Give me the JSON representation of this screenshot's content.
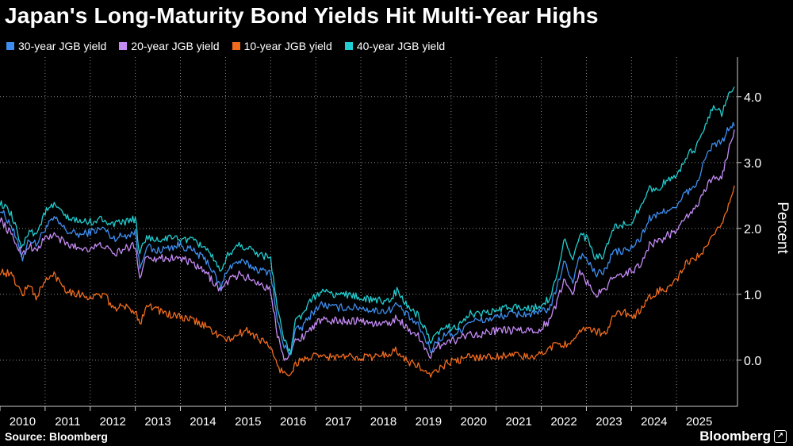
{
  "title": "Japan's Long-Maturity Bond Yields Hit Multi-Year Highs",
  "source": "Source: Bloomberg",
  "brand": "Bloomberg",
  "brand_icon": "chart-icon",
  "chart_data": {
    "type": "line",
    "title": "Japan's Long-Maturity Bond Yields Hit Multi-Year Highs",
    "xlabel": "",
    "ylabel": "Percent",
    "x_ticks": [
      "2010",
      "2011",
      "2012",
      "2013",
      "2014",
      "2015",
      "2016",
      "2017",
      "2018",
      "2019",
      "2020",
      "2021",
      "2022",
      "2023",
      "2024",
      "2025"
    ],
    "xlim": [
      2010.0,
      2026.35
    ],
    "y_ticks": [
      "4.0",
      "3.0",
      "2.0",
      "1.0",
      "0.0"
    ],
    "ylim": [
      -0.7,
      4.6
    ],
    "grid": true,
    "legend_position": "top-left",
    "series": [
      {
        "name": "30-year JGB yield",
        "color": "#3d8ef0",
        "x": [
          2010.0,
          2010.25,
          2010.5,
          2010.65,
          2010.8,
          2011.0,
          2011.2,
          2011.5,
          2011.8,
          2012.0,
          2012.3,
          2012.5,
          2012.8,
          2013.0,
          2013.1,
          2013.25,
          2013.4,
          2013.7,
          2014.0,
          2014.3,
          2014.6,
          2014.9,
          2015.05,
          2015.3,
          2015.5,
          2015.8,
          2016.0,
          2016.15,
          2016.3,
          2016.45,
          2016.55,
          2016.7,
          2016.9,
          2017.1,
          2017.4,
          2017.7,
          2018.0,
          2018.3,
          2018.6,
          2018.8,
          2019.0,
          2019.3,
          2019.55,
          2019.7,
          2019.9,
          2020.1,
          2020.2,
          2020.4,
          2020.7,
          2021.0,
          2021.3,
          2021.6,
          2021.9,
          2022.2,
          2022.35,
          2022.5,
          2022.7,
          2022.85,
          2023.0,
          2023.2,
          2023.4,
          2023.6,
          2023.8,
          2024.0,
          2024.2,
          2024.4,
          2024.6,
          2024.8,
          2025.0,
          2025.2,
          2025.4,
          2025.55,
          2025.7,
          2025.85,
          2026.0,
          2026.1,
          2026.2,
          2026.28
        ],
        "values": [
          2.3,
          2.05,
          1.55,
          1.85,
          1.75,
          2.0,
          2.15,
          1.95,
          1.9,
          1.95,
          2.0,
          1.85,
          1.9,
          1.95,
          1.4,
          1.75,
          1.65,
          1.7,
          1.75,
          1.65,
          1.5,
          1.1,
          1.4,
          1.5,
          1.45,
          1.35,
          1.35,
          0.6,
          0.2,
          0.1,
          0.45,
          0.5,
          0.7,
          0.85,
          0.8,
          0.8,
          0.8,
          0.75,
          0.75,
          0.85,
          0.7,
          0.5,
          0.15,
          0.3,
          0.4,
          0.4,
          0.45,
          0.6,
          0.6,
          0.65,
          0.7,
          0.7,
          0.7,
          0.8,
          1.1,
          1.5,
          1.2,
          1.6,
          1.55,
          1.3,
          1.35,
          1.65,
          1.65,
          1.7,
          1.85,
          2.15,
          2.2,
          2.3,
          2.3,
          2.55,
          2.6,
          2.9,
          3.15,
          3.3,
          3.3,
          3.45,
          3.55,
          3.55
        ]
      },
      {
        "name": "20-year JGB yield",
        "color": "#c48af5",
        "x": [
          2010.0,
          2010.25,
          2010.5,
          2010.65,
          2010.8,
          2011.0,
          2011.2,
          2011.5,
          2011.8,
          2012.0,
          2012.3,
          2012.5,
          2012.8,
          2013.0,
          2013.1,
          2013.25,
          2013.4,
          2013.7,
          2014.0,
          2014.3,
          2014.6,
          2014.9,
          2015.05,
          2015.3,
          2015.5,
          2015.8,
          2016.0,
          2016.15,
          2016.3,
          2016.45,
          2016.55,
          2016.7,
          2016.9,
          2017.1,
          2017.4,
          2017.7,
          2018.0,
          2018.3,
          2018.6,
          2018.8,
          2019.0,
          2019.3,
          2019.55,
          2019.7,
          2019.9,
          2020.1,
          2020.2,
          2020.4,
          2020.7,
          2021.0,
          2021.3,
          2021.6,
          2021.9,
          2022.2,
          2022.35,
          2022.5,
          2022.7,
          2022.85,
          2023.0,
          2023.2,
          2023.4,
          2023.6,
          2023.8,
          2024.0,
          2024.2,
          2024.4,
          2024.6,
          2024.8,
          2025.0,
          2025.2,
          2025.4,
          2025.55,
          2025.7,
          2025.85,
          2026.0,
          2026.1,
          2026.2,
          2026.28
        ],
        "values": [
          2.15,
          1.9,
          1.6,
          1.75,
          1.65,
          1.85,
          1.9,
          1.75,
          1.7,
          1.7,
          1.75,
          1.6,
          1.7,
          1.75,
          1.25,
          1.6,
          1.55,
          1.55,
          1.55,
          1.45,
          1.3,
          1.05,
          1.2,
          1.3,
          1.25,
          1.15,
          1.05,
          0.4,
          0.05,
          0.1,
          0.3,
          0.35,
          0.5,
          0.6,
          0.6,
          0.6,
          0.6,
          0.55,
          0.55,
          0.65,
          0.5,
          0.35,
          0.05,
          0.2,
          0.3,
          0.3,
          0.35,
          0.4,
          0.4,
          0.45,
          0.45,
          0.45,
          0.45,
          0.6,
          0.9,
          1.2,
          1.05,
          1.35,
          1.2,
          1.0,
          1.05,
          1.3,
          1.3,
          1.35,
          1.45,
          1.75,
          1.8,
          1.9,
          1.95,
          2.15,
          2.3,
          2.45,
          2.7,
          2.8,
          2.75,
          3.05,
          3.3,
          3.5
        ]
      },
      {
        "name": "10-year JGB yield",
        "color": "#f26b1d",
        "x": [
          2010.0,
          2010.25,
          2010.5,
          2010.65,
          2010.8,
          2011.0,
          2011.2,
          2011.5,
          2011.8,
          2012.0,
          2012.3,
          2012.5,
          2012.8,
          2013.0,
          2013.1,
          2013.25,
          2013.4,
          2013.7,
          2014.0,
          2014.3,
          2014.6,
          2014.9,
          2015.05,
          2015.3,
          2015.5,
          2015.8,
          2016.0,
          2016.15,
          2016.3,
          2016.45,
          2016.55,
          2016.7,
          2016.9,
          2017.1,
          2017.4,
          2017.7,
          2018.0,
          2018.3,
          2018.6,
          2018.8,
          2019.0,
          2019.3,
          2019.55,
          2019.7,
          2019.9,
          2020.1,
          2020.2,
          2020.4,
          2020.7,
          2021.0,
          2021.3,
          2021.6,
          2021.9,
          2022.2,
          2022.35,
          2022.5,
          2022.7,
          2022.85,
          2023.0,
          2023.2,
          2023.4,
          2023.6,
          2023.8,
          2024.0,
          2024.2,
          2024.4,
          2024.6,
          2024.8,
          2025.0,
          2025.2,
          2025.4,
          2025.55,
          2025.7,
          2025.85,
          2026.0,
          2026.1,
          2026.2,
          2026.28
        ],
        "values": [
          1.35,
          1.3,
          1.0,
          1.15,
          0.95,
          1.2,
          1.3,
          1.05,
          1.0,
          0.95,
          1.0,
          0.8,
          0.8,
          0.75,
          0.55,
          0.85,
          0.8,
          0.7,
          0.65,
          0.6,
          0.5,
          0.35,
          0.3,
          0.4,
          0.45,
          0.3,
          0.2,
          -0.1,
          -0.2,
          -0.2,
          -0.05,
          0.0,
          0.05,
          0.05,
          0.05,
          0.05,
          0.05,
          0.05,
          0.1,
          0.15,
          0.0,
          -0.1,
          -0.25,
          -0.15,
          -0.05,
          0.0,
          0.0,
          0.05,
          0.05,
          0.05,
          0.1,
          0.05,
          0.05,
          0.2,
          0.25,
          0.25,
          0.25,
          0.4,
          0.5,
          0.45,
          0.4,
          0.65,
          0.75,
          0.65,
          0.75,
          0.95,
          1.05,
          1.1,
          1.2,
          1.45,
          1.55,
          1.6,
          1.75,
          1.9,
          2.1,
          2.25,
          2.45,
          2.65
        ]
      },
      {
        "name": "40-year JGB yield",
        "color": "#21cdd0",
        "x": [
          2010.0,
          2010.25,
          2010.5,
          2010.65,
          2010.8,
          2011.0,
          2011.2,
          2011.5,
          2011.8,
          2012.0,
          2012.3,
          2012.5,
          2012.8,
          2013.0,
          2013.1,
          2013.25,
          2013.4,
          2013.7,
          2014.0,
          2014.3,
          2014.6,
          2014.9,
          2015.05,
          2015.3,
          2015.5,
          2015.8,
          2016.0,
          2016.15,
          2016.3,
          2016.45,
          2016.55,
          2016.7,
          2016.9,
          2017.1,
          2017.4,
          2017.7,
          2018.0,
          2018.3,
          2018.6,
          2018.8,
          2019.0,
          2019.3,
          2019.55,
          2019.7,
          2019.9,
          2020.1,
          2020.2,
          2020.4,
          2020.7,
          2021.0,
          2021.3,
          2021.6,
          2021.9,
          2022.2,
          2022.35,
          2022.5,
          2022.7,
          2022.85,
          2023.0,
          2023.2,
          2023.4,
          2023.6,
          2023.8,
          2024.0,
          2024.2,
          2024.4,
          2024.6,
          2024.8,
          2025.0,
          2025.2,
          2025.4,
          2025.55,
          2025.7,
          2025.85,
          2026.0,
          2026.1,
          2026.2,
          2026.28
        ],
        "values": [
          2.4,
          2.2,
          1.7,
          2.0,
          1.9,
          2.25,
          2.35,
          2.15,
          2.1,
          2.1,
          2.15,
          2.05,
          2.1,
          2.15,
          1.6,
          1.9,
          1.8,
          1.85,
          1.85,
          1.8,
          1.7,
          1.3,
          1.6,
          1.75,
          1.7,
          1.6,
          1.55,
          0.8,
          0.3,
          0.1,
          0.6,
          0.7,
          0.9,
          1.05,
          1.0,
          1.0,
          0.95,
          0.9,
          0.9,
          1.05,
          0.85,
          0.65,
          0.25,
          0.4,
          0.5,
          0.5,
          0.55,
          0.7,
          0.7,
          0.75,
          0.8,
          0.8,
          0.8,
          0.95,
          1.3,
          1.85,
          1.5,
          1.9,
          1.85,
          1.55,
          1.6,
          2.0,
          2.05,
          2.1,
          2.35,
          2.6,
          2.6,
          2.75,
          2.75,
          3.1,
          3.2,
          3.45,
          3.7,
          3.85,
          3.75,
          3.95,
          4.05,
          4.15
        ]
      }
    ]
  }
}
